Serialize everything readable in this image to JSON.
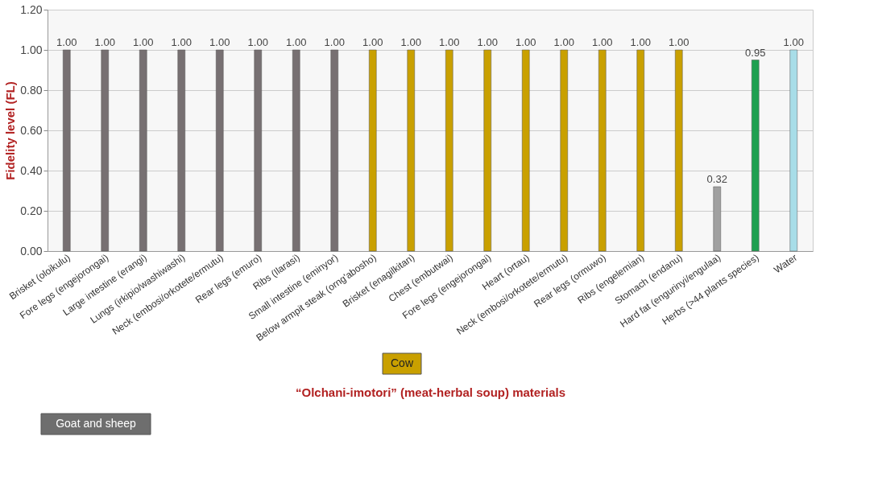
{
  "chart_data": {
    "type": "bar",
    "xlabel": "“Olchani-imotori” (meat-herbal soup) materials",
    "ylabel": "Fidelity level (FL)",
    "categories": [
      "Brisket (oloikulu)",
      "Fore legs (engejorongai)",
      "Large intestine (erangi)",
      "Lungs (irkipio/washiwashi)",
      "Neck (embosi/orkotete/ermutu)",
      "Rear legs (emuro)",
      "Ribs (Ilarasi)",
      "Small intestine (eminyor)",
      "Below armpit steak (orng'abosho)",
      "Brisket (enagilkitan)",
      "Chest (embutwai)",
      "Fore legs (engejorongai)",
      "Heart (ortau)",
      "Neck (embosi/orkotete/ermutu)",
      "Rear legs (ormuwo)",
      "Ribs (engelemian)",
      "Stomach (endanu)",
      "Hard fat (engurinyi/engulaa)",
      "Herbs (>44 plants species)",
      "Water"
    ],
    "values": [
      1.0,
      1.0,
      1.0,
      1.0,
      1.0,
      1.0,
      1.0,
      1.0,
      1.0,
      1.0,
      1.0,
      1.0,
      1.0,
      1.0,
      1.0,
      1.0,
      1.0,
      0.32,
      0.95,
      1.0
    ],
    "colors": [
      "#777072",
      "#777072",
      "#777072",
      "#777072",
      "#777072",
      "#777072",
      "#777072",
      "#777072",
      "#c9a000",
      "#c9a000",
      "#c9a000",
      "#c9a000",
      "#c9a000",
      "#c9a000",
      "#c9a000",
      "#c9a000",
      "#c9a000",
      "#a0a0a0",
      "#1fa050",
      "#a8dde8"
    ],
    "ylim": [
      0,
      1.2
    ],
    "yticks": [
      {
        "value": 0,
        "label": "0.00"
      },
      {
        "value": 0.2,
        "label": "0.20"
      },
      {
        "value": 0.4,
        "label": "0.40"
      },
      {
        "value": 0.6,
        "label": "0.60"
      },
      {
        "value": 0.8,
        "label": "0.80"
      },
      {
        "value": 1.0,
        "label": "1.00"
      },
      {
        "value": 1.2,
        "label": "1.20"
      }
    ],
    "value_labels": [
      "1.00",
      "1.00",
      "1.00",
      "1.00",
      "1.00",
      "1.00",
      "1.00",
      "1.00",
      "1.00",
      "1.00",
      "1.00",
      "1.00",
      "1.00",
      "1.00",
      "1.00",
      "1.00",
      "1.00",
      "0.32",
      "0.95",
      "1.00"
    ],
    "grid": "y",
    "annotations": [
      "Goat and sheep",
      "Cow"
    ]
  }
}
